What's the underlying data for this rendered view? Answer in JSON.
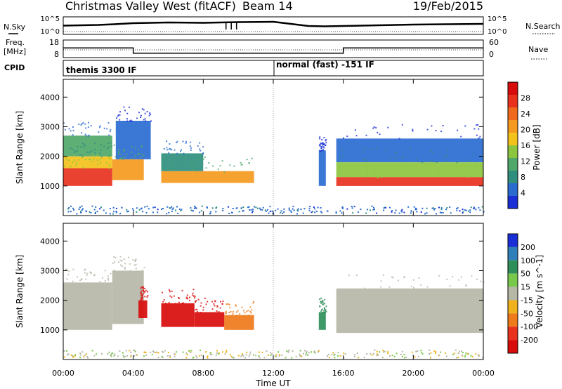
{
  "header": {
    "title": "Christmas Valley West (fitACF)",
    "beam": "Beam 14",
    "date": "19/Feb/2015"
  },
  "side_labels": {
    "nsky": "N.Sky",
    "nsearch": "N.Search",
    "freq": "Freq.",
    "mhz": "[MHz]",
    "nave": "Nave",
    "cpid": "CPID"
  },
  "mini_axes": {
    "nsky_ticks": [
      "10^5",
      "10^0"
    ],
    "nsearch_ticks": [
      "10^5",
      "10^0"
    ],
    "freq_ticks": [
      "18",
      "8"
    ],
    "nave_ticks": [
      "60",
      "0"
    ]
  },
  "cpid": {
    "segment1": "themis 3300 IF",
    "segment2": "normal (fast) -151 IF"
  },
  "colors": {
    "power_scale": [
      "#1a2fd6",
      "#2a6bd0",
      "#2f8f7e",
      "#4fa86a",
      "#8cc63f",
      "#f2c21b",
      "#f59a1f",
      "#ef6a1c",
      "#e8321e",
      "#d80c0c"
    ],
    "velocity_scale": [
      "#1a2fd6",
      "#2f7fb8",
      "#2f8f5a",
      "#78c84b",
      "#b7b7a8",
      "#f0b21a",
      "#ee7a1a",
      "#e8321e",
      "#d80c0c"
    ]
  },
  "chart_data": [
    {
      "type": "line",
      "name": "top-mini-panels",
      "x": [
        "00:00",
        "02:00",
        "02:55",
        "04:00",
        "06:00",
        "08:00",
        "10:00",
        "12:00",
        "14:00",
        "14:55",
        "16:00",
        "18:00",
        "20:00",
        "22:00",
        "24:00"
      ],
      "series": [
        {
          "name": "N.Sky",
          "values": [
            2.5,
            2.7,
            2.9,
            3.2,
            3.4,
            3.3,
            3.5,
            3.6,
            2.4,
            2.3,
            2.4,
            2.6,
            2.8,
            2.9,
            3.0
          ]
        },
        {
          "name": "Freq.",
          "values": [
            13.5,
            13.5,
            13.5,
            10.5,
            10.5,
            10.5,
            10.5,
            10.5,
            10.5,
            10.5,
            13.5,
            13.5,
            13.5,
            13.5,
            13.5
          ]
        }
      ]
    },
    {
      "type": "heatmap",
      "name": "power",
      "xlabel": "Time UT",
      "ylabel": "Slant Range [km]",
      "x_ticks": [
        "00:00",
        "04:00",
        "08:00",
        "12:00",
        "16:00",
        "20:00",
        "00:00"
      ],
      "y_ticks": [
        "1000",
        "2000",
        "3000",
        "4000"
      ],
      "ylim": [
        0,
        4600
      ],
      "colorbar_label": "Power [dB]",
      "colorbar_ticks": [
        "4",
        "8",
        "12",
        "16",
        "20",
        "24",
        "28"
      ],
      "clim": [
        0,
        32
      ],
      "regions": [
        {
          "t0": 0.0,
          "t1": 2.8,
          "r0": 1000,
          "r1": 1600,
          "value": 28
        },
        {
          "t0": 0.0,
          "t1": 2.8,
          "r0": 1600,
          "r1": 2000,
          "value": 18
        },
        {
          "t0": 0.0,
          "t1": 2.8,
          "r0": 2000,
          "r1": 2700,
          "value": 10
        },
        {
          "t0": 2.8,
          "t1": 4.6,
          "r0": 1200,
          "r1": 1900,
          "value": 22
        },
        {
          "t0": 3.0,
          "t1": 5.0,
          "r0": 1900,
          "r1": 3200,
          "value": 6
        },
        {
          "t0": 5.6,
          "t1": 10.9,
          "r0": 1100,
          "r1": 1500,
          "value": 20
        },
        {
          "t0": 5.6,
          "t1": 8.0,
          "r0": 1500,
          "r1": 2100,
          "value": 8
        },
        {
          "t0": 14.6,
          "t1": 15.0,
          "r0": 1000,
          "r1": 2200,
          "value": 6
        },
        {
          "t0": 15.6,
          "t1": 24.0,
          "r0": 1000,
          "r1": 1300,
          "value": 28
        },
        {
          "t0": 15.6,
          "t1": 24.0,
          "r0": 1300,
          "r1": 1800,
          "value": 14
        },
        {
          "t0": 15.6,
          "t1": 24.0,
          "r0": 1800,
          "r1": 2600,
          "value": 6
        }
      ]
    },
    {
      "type": "heatmap",
      "name": "velocity",
      "xlabel": "Time UT",
      "ylabel": "Slant Range [km]",
      "x_ticks": [
        "00:00",
        "04:00",
        "08:00",
        "12:00",
        "16:00",
        "20:00",
        "00:00"
      ],
      "y_ticks": [
        "1000",
        "2000",
        "3000",
        "4000"
      ],
      "ylim": [
        0,
        4600
      ],
      "colorbar_label": "Velocity [m s^-1]",
      "colorbar_ticks": [
        "200",
        "100",
        "50",
        "15",
        "-15",
        "-50",
        "-100",
        "-200"
      ],
      "clim": [
        -250,
        250
      ],
      "regions": [
        {
          "t0": 0.0,
          "t1": 2.8,
          "r0": 1000,
          "r1": 2600,
          "value": 0
        },
        {
          "t0": 2.8,
          "t1": 4.6,
          "r0": 1200,
          "r1": 3000,
          "value": 0
        },
        {
          "t0": 4.3,
          "t1": 4.8,
          "r0": 1400,
          "r1": 2000,
          "value": -200
        },
        {
          "t0": 5.6,
          "t1": 7.5,
          "r0": 1100,
          "r1": 1900,
          "value": -160
        },
        {
          "t0": 7.5,
          "t1": 9.2,
          "r0": 1100,
          "r1": 1600,
          "value": -210
        },
        {
          "t0": 9.2,
          "t1": 10.9,
          "r0": 1000,
          "r1": 1500,
          "value": -70
        },
        {
          "t0": 14.6,
          "t1": 15.0,
          "r0": 1000,
          "r1": 1600,
          "value": 60
        },
        {
          "t0": 15.6,
          "t1": 24.0,
          "r0": 900,
          "r1": 2400,
          "value": 0
        }
      ]
    }
  ]
}
